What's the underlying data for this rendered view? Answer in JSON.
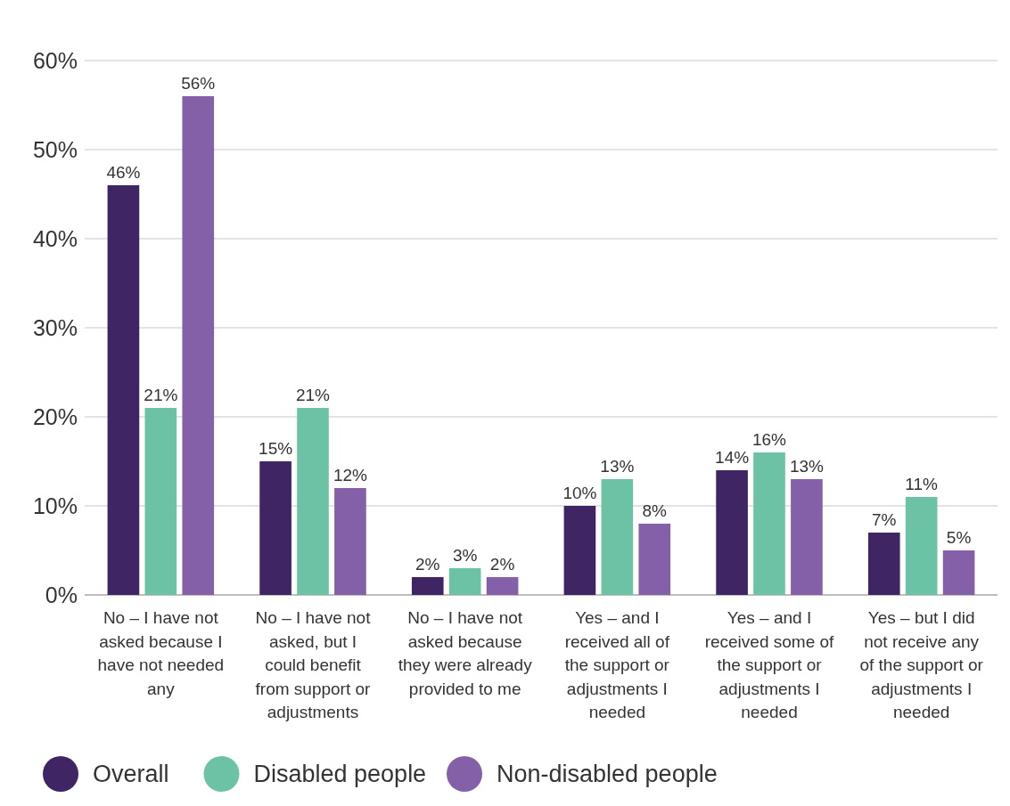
{
  "chart_data": {
    "type": "bar",
    "categories": [
      "No – I have not asked because I have not needed any",
      "No – I have not asked, but I could benefit from support or adjustments",
      "No – I have not asked because they were already provided to me",
      "Yes – and I received all of the support or adjustments I needed",
      "Yes – and I received some of the support or adjustments I needed",
      "Yes – but I did not receive any of the support or adjustments I needed"
    ],
    "series": [
      {
        "name": "Overall",
        "color": "#3f2563",
        "values": [
          46,
          15,
          2,
          10,
          14,
          7
        ],
        "value_labels": [
          "46%",
          "15%",
          "2%",
          "10%",
          "14%",
          "7%"
        ]
      },
      {
        "name": "Disabled people",
        "color": "#6cc2a4",
        "values": [
          21,
          21,
          3,
          13,
          16,
          11
        ],
        "value_labels": [
          "21%",
          "21%",
          "3%",
          "13%",
          "16%",
          "11%"
        ]
      },
      {
        "name": "Non-disabled people",
        "color": "#8360a8",
        "values": [
          56,
          12,
          2,
          8,
          13,
          5
        ],
        "value_labels": [
          "56%",
          "12%",
          "2%",
          "8%",
          "13%",
          "5%"
        ]
      }
    ],
    "ylim": [
      0,
      60
    ],
    "yticks": [
      {
        "value": 0,
        "label": "0%"
      },
      {
        "value": 10,
        "label": "10%"
      },
      {
        "value": 20,
        "label": "20%"
      },
      {
        "value": 30,
        "label": "30%"
      },
      {
        "value": 40,
        "label": "40%"
      },
      {
        "value": 50,
        "label": "50%"
      },
      {
        "value": 60,
        "label": "60%"
      }
    ],
    "grid": "y",
    "legend": "bottom"
  }
}
